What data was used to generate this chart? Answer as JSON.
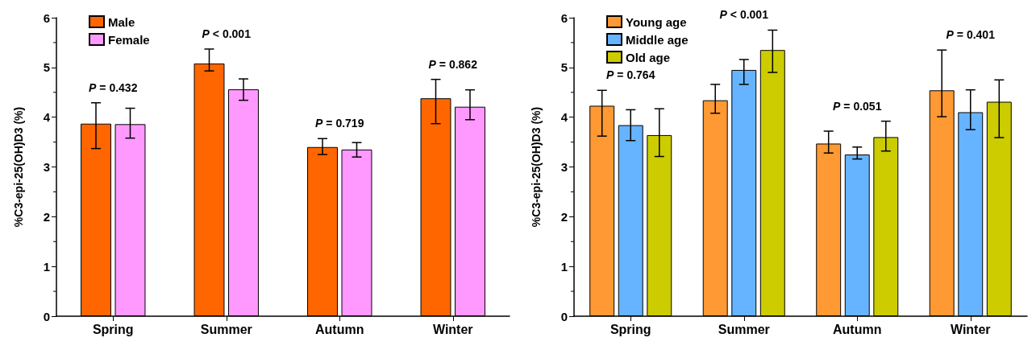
{
  "chart_data": [
    {
      "type": "bar",
      "ylabel": "%C3-epi-25(OH)D3 (%)",
      "categories": [
        "Spring",
        "Summer",
        "Autumn",
        "Winter"
      ],
      "ylim": [
        0,
        6
      ],
      "yticks": [
        0,
        1,
        2,
        3,
        4,
        5,
        6
      ],
      "grid": false,
      "legend": "top left",
      "series": [
        {
          "name": "Male",
          "color": "#ff6600",
          "values": [
            3.87,
            5.08,
            3.4,
            4.38
          ],
          "errors": [
            [
              3.37,
              4.29
            ],
            [
              4.93,
              5.37
            ],
            [
              3.25,
              3.57
            ],
            [
              3.87,
              4.76
            ]
          ]
        },
        {
          "name": "Female",
          "color": "#ff99ff",
          "values": [
            3.86,
            4.56,
            3.35,
            4.21
          ],
          "errors": [
            [
              3.58,
              4.18
            ],
            [
              4.34,
              4.77
            ],
            [
              3.2,
              3.49
            ],
            [
              3.95,
              4.55
            ]
          ]
        }
      ],
      "annotations": [
        "P = 0.432",
        "P < 0.001",
        "P = 0.719",
        "P = 0.862"
      ]
    },
    {
      "type": "bar",
      "ylabel": "%C3-epi-25(OH)D3 (%)",
      "categories": [
        "Spring",
        "Summer",
        "Autumn",
        "Winter"
      ],
      "ylim": [
        0,
        6
      ],
      "yticks": [
        0,
        1,
        2,
        3,
        4,
        5,
        6
      ],
      "grid": false,
      "legend": "top left",
      "series": [
        {
          "name": "Young age",
          "color": "#ff9933",
          "values": [
            4.23,
            4.34,
            3.47,
            4.54
          ],
          "errors": [
            [
              3.62,
              4.54
            ],
            [
              4.08,
              4.66
            ],
            [
              3.28,
              3.72
            ],
            [
              4.01,
              5.35
            ]
          ]
        },
        {
          "name": "Middle age",
          "color": "#66b3ff",
          "values": [
            3.84,
            4.95,
            3.25,
            4.1
          ],
          "errors": [
            [
              3.53,
              4.15
            ],
            [
              4.66,
              5.16
            ],
            [
              3.16,
              3.4
            ],
            [
              3.75,
              4.55
            ]
          ]
        },
        {
          "name": "Old age",
          "color": "#cccc00",
          "values": [
            3.64,
            5.35,
            3.6,
            4.31
          ],
          "errors": [
            [
              3.21,
              4.17
            ],
            [
              4.9,
              5.75
            ],
            [
              3.32,
              3.92
            ],
            [
              3.59,
              4.75
            ]
          ]
        }
      ],
      "annotations": [
        "P = 0.764",
        "P < 0.001",
        "P = 0.051",
        "P = 0.401"
      ]
    }
  ]
}
